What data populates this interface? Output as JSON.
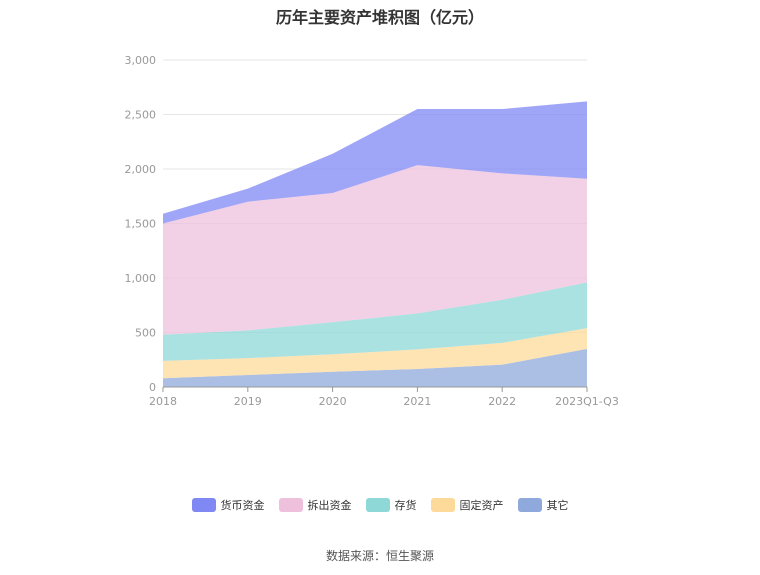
{
  "chart_data": {
    "type": "area",
    "title": "历年主要资产堆积图（亿元）",
    "categories": [
      "2018",
      "2019",
      "2020",
      "2021",
      "2022",
      "2023Q1-Q3"
    ],
    "y_ticks": [
      "0",
      "500",
      "1,000",
      "1,500",
      "2,000",
      "2,500",
      "3,000"
    ],
    "ylim": [
      0,
      3000
    ],
    "stacked": true,
    "grid": true,
    "legend_position": "bottom",
    "series": [
      {
        "name": "其它",
        "color": "#8fa9dc",
        "values": [
          80,
          110,
          140,
          165,
          205,
          350
        ]
      },
      {
        "name": "固定资产",
        "color": "#fdd99a",
        "values": [
          160,
          155,
          160,
          180,
          200,
          190
        ]
      },
      {
        "name": "存货",
        "color": "#8ed8d8",
        "values": [
          240,
          255,
          295,
          330,
          395,
          420
        ]
      },
      {
        "name": "拆出资金",
        "color": "#eec0dc",
        "values": [
          1020,
          1180,
          1185,
          1360,
          1160,
          950
        ]
      },
      {
        "name": "货币资金",
        "color": "#8088f4",
        "values": [
          90,
          120,
          360,
          515,
          590,
          710
        ]
      }
    ],
    "legend_order": [
      "货币资金",
      "拆出资金",
      "存货",
      "固定资产",
      "其它"
    ]
  },
  "footer": {
    "source": "数据来源：恒生聚源"
  }
}
